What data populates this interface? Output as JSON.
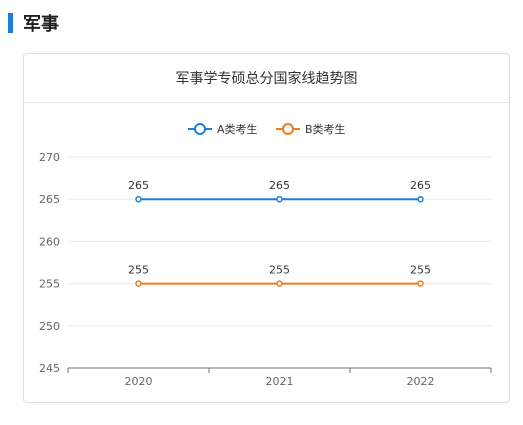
{
  "section": {
    "title": "军事"
  },
  "chart_data": {
    "type": "line",
    "title": "军事学专硕总分国家线趋势图",
    "categories": [
      "2020",
      "2021",
      "2022"
    ],
    "series": [
      {
        "name": "A类考生",
        "values": [
          265,
          265,
          265
        ],
        "color": "#1a7fd8"
      },
      {
        "name": "B类考生",
        "values": [
          255,
          255,
          255
        ],
        "color": "#f07a1c"
      }
    ],
    "ylim": [
      245,
      270
    ],
    "yticks": [
      245,
      250,
      255,
      260,
      265,
      270
    ],
    "legend_position": "top-center",
    "grid": true
  }
}
